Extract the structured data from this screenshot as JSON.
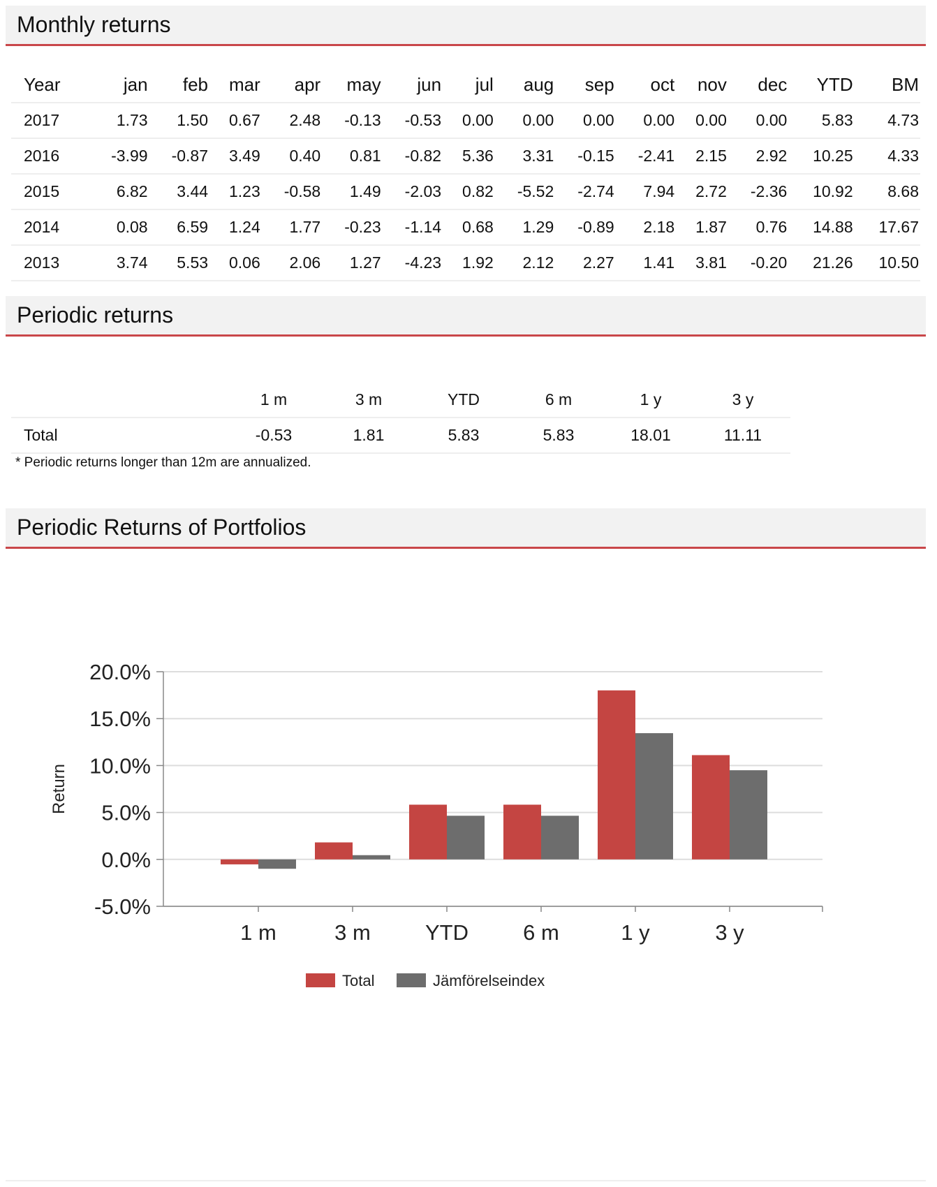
{
  "monthly": {
    "title": "Monthly returns",
    "headers": [
      "Year",
      "jan",
      "feb",
      "mar",
      "apr",
      "may",
      "jun",
      "jul",
      "aug",
      "sep",
      "oct",
      "nov",
      "dec",
      "YTD",
      "BM"
    ],
    "rows": [
      [
        "2017",
        "1.73",
        "1.50",
        "0.67",
        "2.48",
        "-0.13",
        "-0.53",
        "0.00",
        "0.00",
        "0.00",
        "0.00",
        "0.00",
        "0.00",
        "5.83",
        "4.73"
      ],
      [
        "2016",
        "-3.99",
        "-0.87",
        "3.49",
        "0.40",
        "0.81",
        "-0.82",
        "5.36",
        "3.31",
        "-0.15",
        "-2.41",
        "2.15",
        "2.92",
        "10.25",
        "4.33"
      ],
      [
        "2015",
        "6.82",
        "3.44",
        "1.23",
        "-0.58",
        "1.49",
        "-2.03",
        "0.82",
        "-5.52",
        "-2.74",
        "7.94",
        "2.72",
        "-2.36",
        "10.92",
        "8.68"
      ],
      [
        "2014",
        "0.08",
        "6.59",
        "1.24",
        "1.77",
        "-0.23",
        "-1.14",
        "0.68",
        "1.29",
        "-0.89",
        "2.18",
        "1.87",
        "0.76",
        "14.88",
        "17.67"
      ],
      [
        "2013",
        "3.74",
        "5.53",
        "0.06",
        "2.06",
        "1.27",
        "-4.23",
        "1.92",
        "2.12",
        "2.27",
        "1.41",
        "3.81",
        "-0.20",
        "21.26",
        "10.50"
      ]
    ]
  },
  "periodic": {
    "title": "Periodic returns",
    "headers": [
      "",
      "1 m",
      "3 m",
      "YTD",
      "6 m",
      "1 y",
      "3 y"
    ],
    "rows": [
      [
        "Total",
        "-0.53",
        "1.81",
        "5.83",
        "5.83",
        "18.01",
        "11.11"
      ]
    ],
    "footnote": "* Periodic returns longer than 12m are annualized."
  },
  "chart_section": {
    "title": "Periodic Returns of Portfolios"
  },
  "colors": {
    "accent": "#c9474a",
    "total": "#c44542",
    "benchmark": "#6d6d6d",
    "grid": "#dddddd"
  },
  "chart_data": {
    "type": "bar",
    "title": "Periodic Returns of Portfolios",
    "categories": [
      "1 m",
      "3 m",
      "YTD",
      "6 m",
      "1 y",
      "3 y"
    ],
    "series": [
      {
        "name": "Total",
        "values": [
          -0.53,
          1.81,
          5.83,
          5.83,
          18.01,
          11.11
        ]
      },
      {
        "name": "Jämförelseindex",
        "values": [
          -1.0,
          0.45,
          4.65,
          4.65,
          13.45,
          9.5
        ]
      }
    ],
    "xlabel": "",
    "ylabel": "Return",
    "ylim": [
      -5,
      20
    ],
    "yticks": [
      -5,
      0,
      5,
      10,
      15,
      20
    ],
    "ytick_labels": [
      "-5.0%",
      "0.0%",
      "5.0%",
      "10.0%",
      "15.0%",
      "20.0%"
    ],
    "grid": true,
    "legend": "bottom-center"
  }
}
